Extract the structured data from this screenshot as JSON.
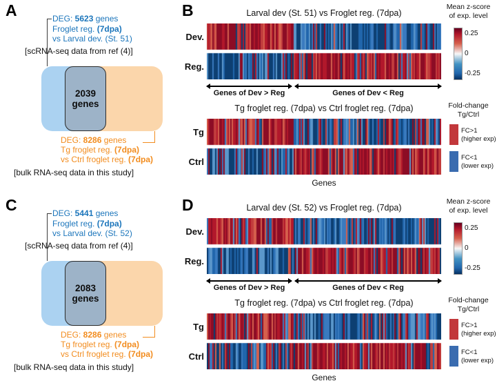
{
  "panels": {
    "a": {
      "label": "A",
      "deg1_prefix": "DEG: ",
      "deg1_count": "5623",
      "deg1_suffix": " genes",
      "l2_pre": "Froglet reg. ",
      "l2_bold": "(7dpa)",
      "l3": "vs Larval dev. (St. 51)",
      "source1": "[scRNA-seq data from ref (4)]",
      "overlap_count": "2039",
      "overlap_word": "genes",
      "deg2_prefix": "DEG: ",
      "deg2_count": "8286",
      "deg2_suffix": " genes",
      "o2_pre": "Tg froglet reg. ",
      "o2_bold": "(7dpa)",
      "o3_pre": "vs Ctrl froglet reg. ",
      "o3_bold": "(7dpa)",
      "source2": "[bulk RNA-seq data in this study]"
    },
    "c": {
      "label": "C",
      "deg1_prefix": "DEG: ",
      "deg1_count": "5441",
      "deg1_suffix": " genes",
      "l2_pre": "Froglet reg. ",
      "l2_bold": "(7dpa)",
      "l3": "vs Larval dev. (St. 52)",
      "source1": "[scRNA-seq data from ref (4)]",
      "overlap_count": "2083",
      "overlap_word": "genes",
      "deg2_prefix": "DEG: ",
      "deg2_count": "8286",
      "deg2_suffix": " genes",
      "o2_pre": "Tg froglet reg. ",
      "o2_bold": "(7dpa)",
      "o3_pre": "vs Ctrl froglet reg. ",
      "o3_bold": "(7dpa)",
      "source2": "[bulk RNA-seq data in this study]"
    },
    "b": {
      "label": "B",
      "title1": "Larval dev (St. 51) vs Froglet reg. (7dpa)",
      "cb_line1": "Mean z-score",
      "cb_line2": "of exp. level",
      "ticks": [
        "0.25",
        "0",
        "-0.25"
      ],
      "row1a": "Dev.",
      "row1b": "Reg.",
      "arrow_left": "Genes of Dev > Reg",
      "arrow_right": "Genes of Dev < Reg",
      "title2": "Tg froglet reg. (7dpa) vs Ctrl froglet reg. (7dpa)",
      "lg_line1": "Fold-change",
      "lg_line2": "Tg/Ctrl",
      "lg_red1": "FC>1",
      "lg_red2": "(higher exp)",
      "lg_blue1": "FC<1",
      "lg_blue2": "(lower exp)",
      "row2a": "Tg",
      "row2b": "Ctrl",
      "xlabel": "Genes"
    },
    "d": {
      "label": "D",
      "title1": "Larval dev (St. 52) vs Froglet reg. (7dpa)",
      "cb_line1": "Mean z-score",
      "cb_line2": "of exp. level",
      "ticks": [
        "0.25",
        "0",
        "-0.25"
      ],
      "row1a": "Dev.",
      "row1b": "Reg.",
      "arrow_left": "Genes of Dev > Reg",
      "arrow_right": "Genes of Dev < Reg",
      "title2": "Tg froglet reg. (7dpa) vs Ctrl froglet reg. (7dpa)",
      "lg_line1": "Fold-change",
      "lg_line2": "Tg/Ctrl",
      "lg_red1": "FC>1",
      "lg_red2": "(higher exp)",
      "lg_blue1": "FC<1",
      "lg_blue2": "(lower exp)",
      "row2a": "Tg",
      "row2b": "Ctrl",
      "xlabel": "Genes"
    }
  },
  "colors": {
    "blue_text": "#1b75bb",
    "orange_text": "#f28c1e",
    "venn_blue": "#abd2f1",
    "venn_orange": "#fbd6ab",
    "venn_overlap": "#9db3c8",
    "legend_red": "#c2383b",
    "legend_blue": "#3a6cb0",
    "red_shades": [
      "#8c0c25",
      "#b2182b",
      "#c23d3d",
      "#d6604d"
    ],
    "blue_shades": [
      "#0d3f72",
      "#2166ac",
      "#3a7abf",
      "#5b97cb"
    ]
  },
  "chart_data": [
    {
      "id": "hm-b1",
      "type": "heatmap",
      "panel": "B",
      "title": "Larval dev (St. 51) vs Froglet reg. (7dpa)",
      "rows": [
        "Dev.",
        "Reg."
      ],
      "xlabel": "genes (individual columns, unlabeled)",
      "boundary_fraction": 0.37,
      "segment_labels": [
        "Genes of Dev > Reg",
        "Genes of Dev < Reg"
      ],
      "value_label": "Mean z-score of exp. level",
      "value_ticks": [
        0.25,
        0,
        -0.25
      ],
      "row_patterns": [
        {
          "row": "Dev.",
          "p_red": [
            0.9,
            0.13
          ]
        },
        {
          "row": "Reg.",
          "p_red": [
            0.11,
            0.88
          ]
        }
      ],
      "seed": 101
    },
    {
      "id": "hm-b2",
      "type": "heatmap",
      "panel": "B",
      "title": "Tg froglet reg. (7dpa) vs Ctrl froglet reg. (7dpa)",
      "rows": [
        "Tg",
        "Ctrl"
      ],
      "xlabel": "Genes",
      "boundary_fraction": 0.37,
      "legend": [
        {
          "color": "red",
          "label": "FC>1 (higher exp)"
        },
        {
          "color": "blue",
          "label": "FC<1 (lower exp)"
        }
      ],
      "row_patterns": [
        {
          "row": "Tg",
          "p_red": [
            0.82,
            0.3
          ]
        },
        {
          "row": "Ctrl",
          "p_red": [
            0.27,
            0.86
          ]
        }
      ],
      "seed": 202
    },
    {
      "id": "hm-d1",
      "type": "heatmap",
      "panel": "D",
      "title": "Larval dev (St. 52) vs Froglet reg. (7dpa)",
      "rows": [
        "Dev.",
        "Reg."
      ],
      "xlabel": "genes (individual columns, unlabeled)",
      "boundary_fraction": 0.37,
      "segment_labels": [
        "Genes of Dev > Reg",
        "Genes of Dev < Reg"
      ],
      "value_label": "Mean z-score of exp. level",
      "value_ticks": [
        0.25,
        0,
        -0.25
      ],
      "row_patterns": [
        {
          "row": "Dev.",
          "p_red": [
            0.9,
            0.13
          ]
        },
        {
          "row": "Reg.",
          "p_red": [
            0.11,
            0.88
          ]
        }
      ],
      "seed": 303
    },
    {
      "id": "hm-d2",
      "type": "heatmap",
      "panel": "D",
      "title": "Tg froglet reg. (7dpa) vs Ctrl froglet reg. (7dpa)",
      "rows": [
        "Tg",
        "Ctrl"
      ],
      "xlabel": "Genes",
      "boundary_fraction": 0.37,
      "legend": [
        {
          "color": "red",
          "label": "FC>1 (higher exp)"
        },
        {
          "color": "blue",
          "label": "FC<1 (lower exp)"
        }
      ],
      "row_patterns": [
        {
          "row": "Tg",
          "p_red": [
            0.82,
            0.3
          ]
        },
        {
          "row": "Ctrl",
          "p_red": [
            0.27,
            0.86
          ]
        }
      ],
      "seed": 404
    }
  ]
}
